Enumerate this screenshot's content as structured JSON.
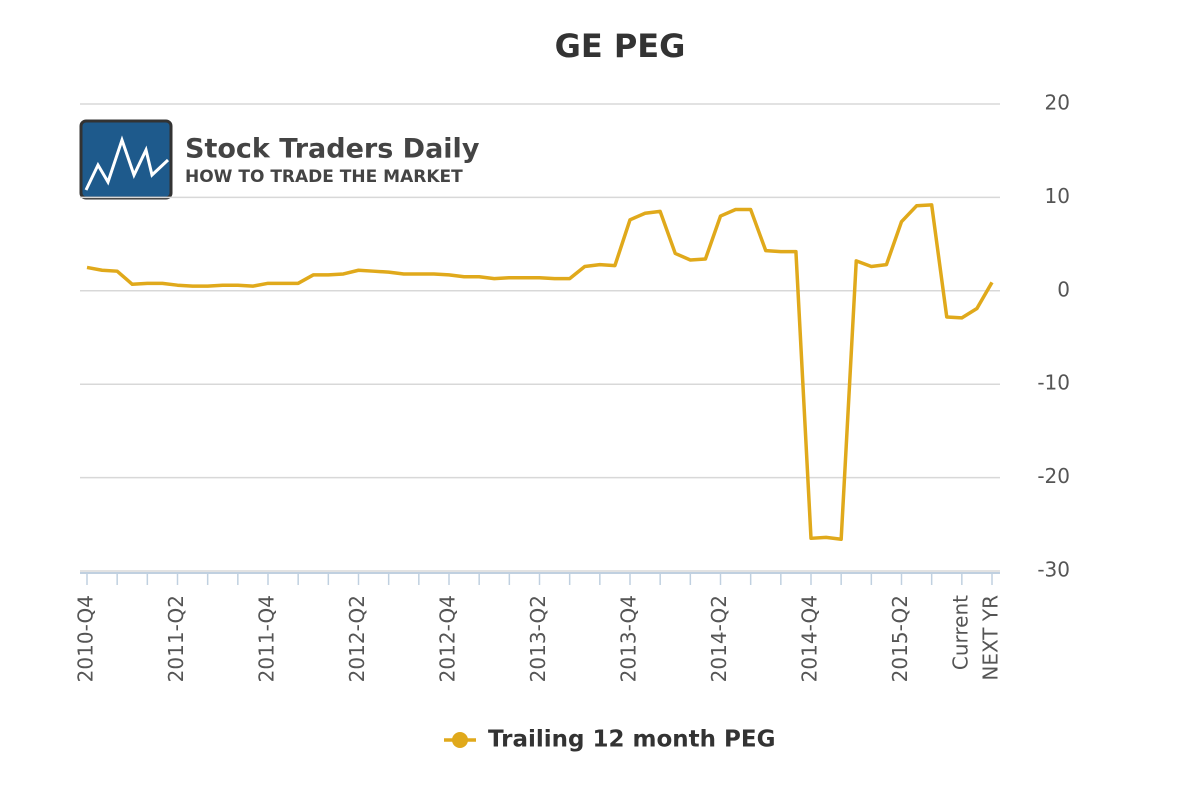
{
  "chart_data": {
    "type": "line",
    "title": "GE PEG",
    "watermark": {
      "name": "Stock Traders Daily",
      "tagline": "HOW TO TRADE THE MARKET"
    },
    "categories": [
      "2010-Q4",
      null,
      null,
      null,
      null,
      null,
      "2011-Q2",
      null,
      null,
      null,
      null,
      null,
      "2011-Q4",
      null,
      null,
      null,
      null,
      null,
      "2012-Q2",
      null,
      null,
      null,
      null,
      null,
      "2012-Q4",
      null,
      null,
      null,
      null,
      null,
      "2013-Q2",
      null,
      null,
      null,
      null,
      null,
      "2013-Q4",
      null,
      null,
      null,
      null,
      null,
      "2014-Q2",
      null,
      null,
      null,
      null,
      null,
      "2014-Q4",
      null,
      null,
      null,
      null,
      null,
      "2015-Q2",
      null,
      null,
      null,
      "Current",
      null,
      "NEXT YR"
    ],
    "series": [
      {
        "name": "Trailing 12 month PEG",
        "color": "#e0a91b",
        "values": [
          2.5,
          2.2,
          2.1,
          0.7,
          0.8,
          0.8,
          0.6,
          0.5,
          0.5,
          0.6,
          0.6,
          0.5,
          0.8,
          0.8,
          0.8,
          1.7,
          1.7,
          1.8,
          2.2,
          2.1,
          2.0,
          1.8,
          1.8,
          1.8,
          1.7,
          1.5,
          1.5,
          1.3,
          1.4,
          1.4,
          1.4,
          1.3,
          1.3,
          2.6,
          2.8,
          2.7,
          7.6,
          8.3,
          8.5,
          4.0,
          3.3,
          3.4,
          8.0,
          8.7,
          8.7,
          4.3,
          4.2,
          4.2,
          -26.5,
          -26.4,
          -26.6,
          3.2,
          2.6,
          2.8,
          7.4,
          9.1,
          9.2,
          -2.8,
          -2.9,
          -1.9,
          0.9
        ]
      }
    ],
    "ylim": [
      -30,
      20
    ],
    "yticks": [
      -30,
      -20,
      -10,
      0,
      10,
      20
    ],
    "grid": true,
    "legend": "bottom"
  }
}
